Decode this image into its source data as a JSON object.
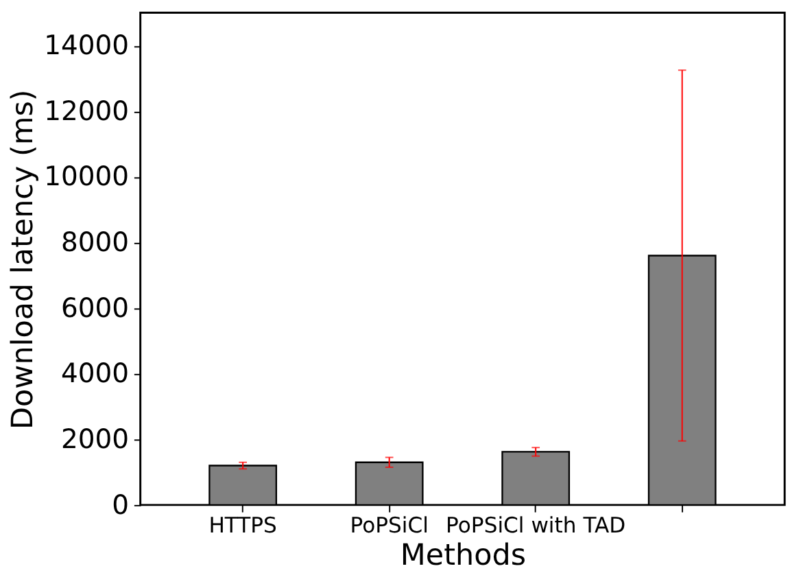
{
  "chart_data": {
    "type": "bar",
    "xlabel": "Methods",
    "ylabel": "Download latency (ms)",
    "categories": [
      "HTTPS",
      "PoPSiCl",
      "PoPSiCl with TAD",
      null
    ],
    "values": [
      1200,
      1300,
      1620,
      7600
    ],
    "errors": [
      100,
      150,
      130,
      [
        1950,
        13250
      ]
    ],
    "color": "#808080",
    "ylim": [
      0,
      15000
    ],
    "yticks": [
      0,
      2000,
      4000,
      6000,
      8000,
      10000,
      12000,
      14000
    ],
    "grid": false
  }
}
